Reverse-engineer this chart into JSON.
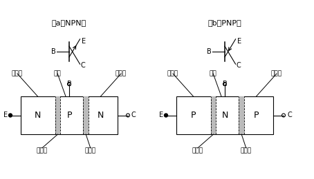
{
  "bg_color": "#ffffff",
  "line_color": "#000000",
  "gray_color": "#999999",
  "font_size_label": 8,
  "font_size_region": 7,
  "npn_labels": [
    "N",
    "P",
    "N"
  ],
  "pnp_labels": [
    "P",
    "N",
    "P"
  ],
  "label_E": "E",
  "label_C": "C",
  "label_B": "B",
  "label_emitter_j": "发射结",
  "label_collector_j": "集电结",
  "label_emitter_r": "发射区",
  "label_base_r": "基区",
  "label_collector_r": "集电区",
  "caption_npn": "（a）NPN型",
  "caption_pnp": "（b）PNP型"
}
